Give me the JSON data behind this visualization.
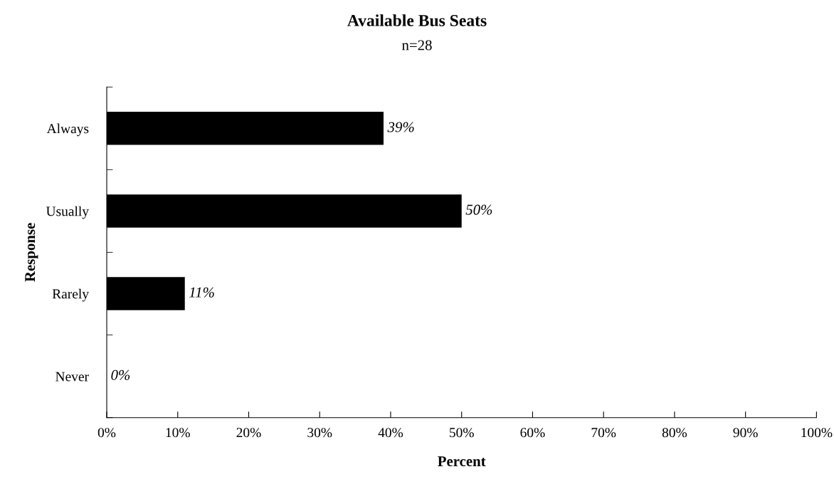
{
  "chart_data": {
    "type": "bar",
    "orientation": "horizontal",
    "title": "Available Bus Seats",
    "subtitle": "n=28",
    "xlabel": "Percent",
    "ylabel": "Response",
    "categories": [
      "Always",
      "Usually",
      "Rarely",
      "Never"
    ],
    "values": [
      39,
      50,
      11,
      0
    ],
    "value_labels": [
      "39%",
      "50%",
      "11%",
      "0%"
    ],
    "color": "#000000",
    "xlim": [
      0,
      100
    ],
    "xticks": [
      {
        "value": 0,
        "label": "0%"
      },
      {
        "value": 10,
        "label": "10%"
      },
      {
        "value": 20,
        "label": "20%"
      },
      {
        "value": 30,
        "label": "30%"
      },
      {
        "value": 40,
        "label": "40%"
      },
      {
        "value": 50,
        "label": "50%"
      },
      {
        "value": 60,
        "label": "60%"
      },
      {
        "value": 70,
        "label": "70%"
      },
      {
        "value": 80,
        "label": "80%"
      },
      {
        "value": 90,
        "label": "90%"
      },
      {
        "value": 100,
        "label": "100%"
      }
    ],
    "grid": false,
    "legend": false
  }
}
